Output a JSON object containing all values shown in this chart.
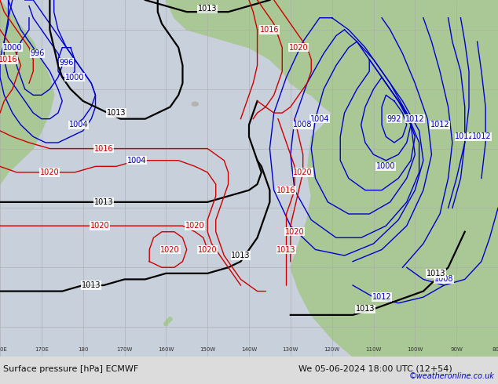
{
  "background_ocean": "#c8d0dc",
  "background_land_green": "#aac896",
  "background_land_gray": "#b4b4aa",
  "grid_color": "#aaaaaa",
  "bottom_bar_color": "#dcdcdc",
  "bottom_text_color": "#111111",
  "credit_color": "#0000bb",
  "col_blue": "#0000cc",
  "col_black": "#000000",
  "col_red": "#cc0000",
  "figsize": [
    6.34,
    4.9
  ],
  "dpi": 100,
  "bottom_label": "Surface pressure [hPa] ECMWF",
  "datetime_label": "We 05-06-2024 18:00 UTC (12+54)",
  "credit": "©weatheronline.co.uk"
}
